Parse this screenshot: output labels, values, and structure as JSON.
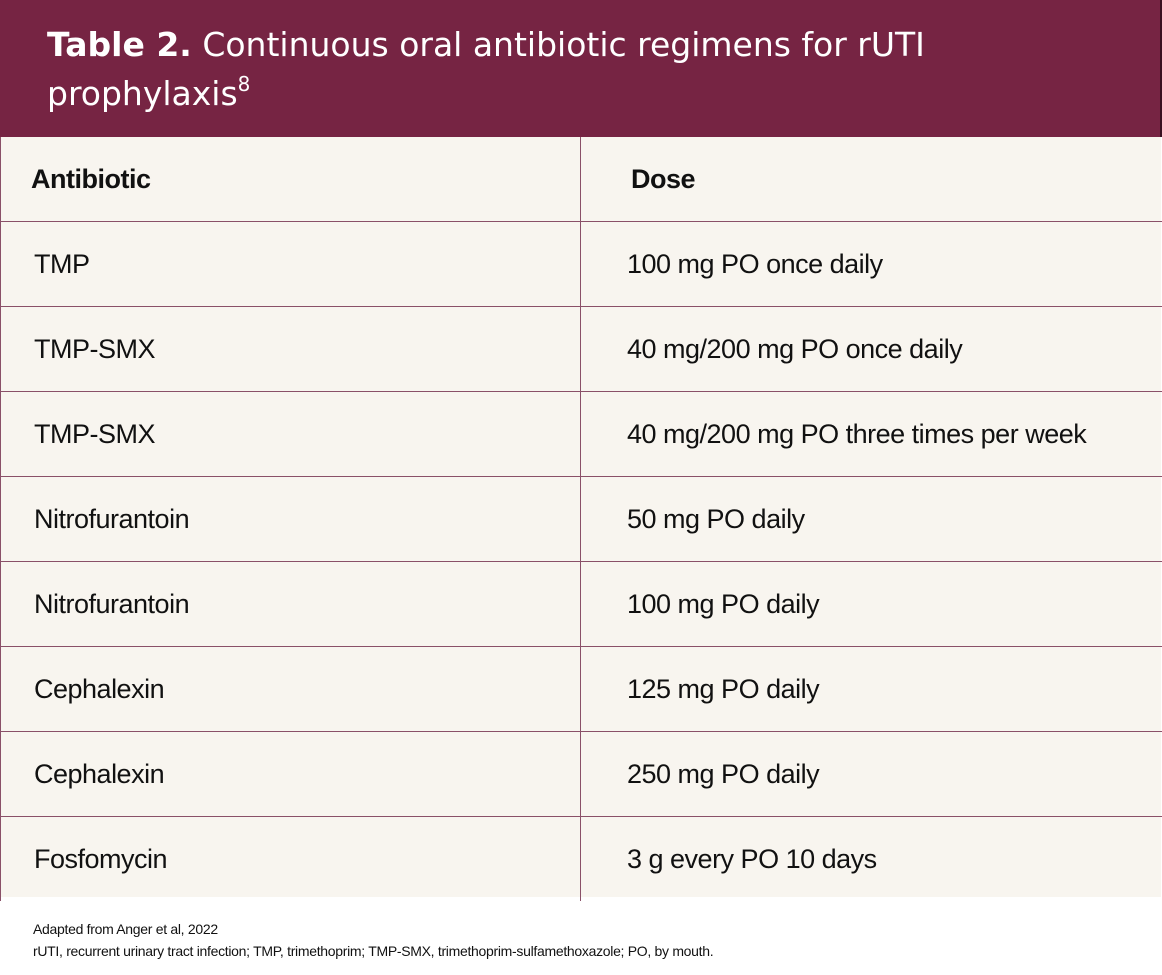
{
  "header": {
    "label": "Table 2.",
    "title": "Continuous oral antibiotic regimens for rUTI prophylaxis",
    "superscript": "8",
    "background_color": "#762443"
  },
  "table": {
    "columns": [
      "Antibiotic",
      "Dose"
    ],
    "rows": [
      [
        "TMP",
        "100 mg PO once daily"
      ],
      [
        "TMP-SMX",
        "40 mg/200 mg PO once daily"
      ],
      [
        "TMP-SMX",
        "40 mg/200 mg PO three times per week"
      ],
      [
        "Nitrofurantoin",
        "50 mg PO daily"
      ],
      [
        "Nitrofurantoin",
        "100 mg PO daily"
      ],
      [
        "Cephalexin",
        "125 mg PO daily"
      ],
      [
        "Cephalexin",
        "250 mg PO daily"
      ],
      [
        "Fosfomycin",
        "3 g every PO 10 days"
      ]
    ]
  },
  "footnotes": {
    "source": "Adapted from Anger et al, 2022",
    "abbreviations": "rUTI, recurrent urinary tract infection; TMP, trimethoprim; TMP-SMX, trimethoprim-sulfamethoxazole; PO, by mouth."
  }
}
